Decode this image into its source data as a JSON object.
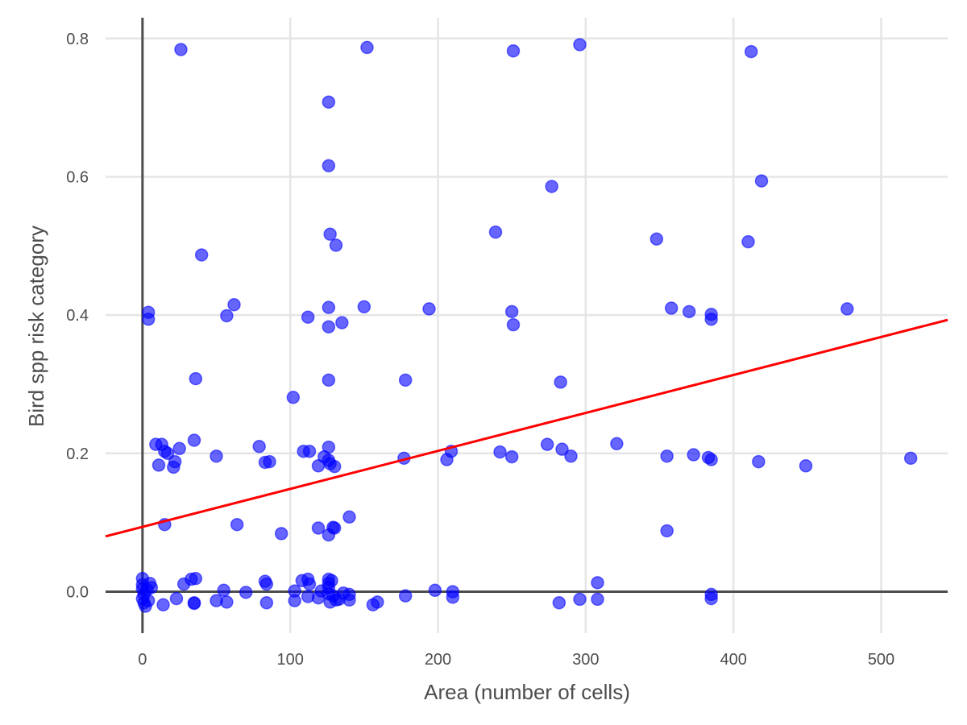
{
  "chart_data": {
    "type": "scatter",
    "title": "",
    "xlabel": "Area (number of cells)",
    "ylabel": "Bird spp risk category",
    "xlim": [
      -25,
      545
    ],
    "ylim": [
      -0.06,
      0.83
    ],
    "xticks": [
      0,
      100,
      200,
      300,
      400,
      500
    ],
    "yticks": [
      0.0,
      0.2,
      0.4,
      0.6,
      0.8
    ],
    "xtick_labels": [
      "0",
      "100",
      "200",
      "300",
      "400",
      "500"
    ],
    "ytick_labels": [
      "0.0",
      "0.2",
      "0.4",
      "0.6",
      "0.8"
    ],
    "grid": true,
    "reference_lines": {
      "x": 0,
      "y": 0
    },
    "point_color": "#0000ff",
    "fit_line_color": "#ff0000",
    "trend_line": {
      "x": [
        -25,
        545
      ],
      "y": [
        0.08,
        0.393
      ]
    },
    "points": [
      {
        "x": 26,
        "y": 0.784
      },
      {
        "x": 152,
        "y": 0.787
      },
      {
        "x": 251,
        "y": 0.782
      },
      {
        "x": 296,
        "y": 0.791
      },
      {
        "x": 412,
        "y": 0.781
      },
      {
        "x": 126,
        "y": 0.708
      },
      {
        "x": 126,
        "y": 0.616
      },
      {
        "x": 277,
        "y": 0.586
      },
      {
        "x": 419,
        "y": 0.594
      },
      {
        "x": 239,
        "y": 0.52
      },
      {
        "x": 127,
        "y": 0.517
      },
      {
        "x": 131,
        "y": 0.501
      },
      {
        "x": 40,
        "y": 0.487
      },
      {
        "x": 348,
        "y": 0.51
      },
      {
        "x": 410,
        "y": 0.506
      },
      {
        "x": 4,
        "y": 0.404
      },
      {
        "x": 4,
        "y": 0.394
      },
      {
        "x": 62,
        "y": 0.415
      },
      {
        "x": 57,
        "y": 0.399
      },
      {
        "x": 112,
        "y": 0.397
      },
      {
        "x": 126,
        "y": 0.411
      },
      {
        "x": 126,
        "y": 0.383
      },
      {
        "x": 135,
        "y": 0.389
      },
      {
        "x": 150,
        "y": 0.412
      },
      {
        "x": 194,
        "y": 0.409
      },
      {
        "x": 250,
        "y": 0.405
      },
      {
        "x": 251,
        "y": 0.386
      },
      {
        "x": 358,
        "y": 0.41
      },
      {
        "x": 370,
        "y": 0.405
      },
      {
        "x": 385,
        "y": 0.401
      },
      {
        "x": 385,
        "y": 0.394
      },
      {
        "x": 477,
        "y": 0.409
      },
      {
        "x": 36,
        "y": 0.308
      },
      {
        "x": 126,
        "y": 0.306
      },
      {
        "x": 178,
        "y": 0.306
      },
      {
        "x": 283,
        "y": 0.303
      },
      {
        "x": 102,
        "y": 0.281
      },
      {
        "x": 9,
        "y": 0.213
      },
      {
        "x": 13,
        "y": 0.213
      },
      {
        "x": 15,
        "y": 0.203
      },
      {
        "x": 17,
        "y": 0.2
      },
      {
        "x": 25,
        "y": 0.207
      },
      {
        "x": 35,
        "y": 0.219
      },
      {
        "x": 11,
        "y": 0.183
      },
      {
        "x": 21,
        "y": 0.18
      },
      {
        "x": 22,
        "y": 0.188
      },
      {
        "x": 50,
        "y": 0.196
      },
      {
        "x": 79,
        "y": 0.21
      },
      {
        "x": 83,
        "y": 0.187
      },
      {
        "x": 86,
        "y": 0.188
      },
      {
        "x": 109,
        "y": 0.203
      },
      {
        "x": 113,
        "y": 0.203
      },
      {
        "x": 119,
        "y": 0.182
      },
      {
        "x": 123,
        "y": 0.195
      },
      {
        "x": 126,
        "y": 0.209
      },
      {
        "x": 126,
        "y": 0.19
      },
      {
        "x": 127,
        "y": 0.185
      },
      {
        "x": 130,
        "y": 0.181
      },
      {
        "x": 177,
        "y": 0.193
      },
      {
        "x": 206,
        "y": 0.191
      },
      {
        "x": 209,
        "y": 0.203
      },
      {
        "x": 242,
        "y": 0.202
      },
      {
        "x": 250,
        "y": 0.195
      },
      {
        "x": 274,
        "y": 0.213
      },
      {
        "x": 284,
        "y": 0.206
      },
      {
        "x": 290,
        "y": 0.196
      },
      {
        "x": 321,
        "y": 0.214
      },
      {
        "x": 355,
        "y": 0.196
      },
      {
        "x": 373,
        "y": 0.198
      },
      {
        "x": 383,
        "y": 0.194
      },
      {
        "x": 385,
        "y": 0.191
      },
      {
        "x": 417,
        "y": 0.188
      },
      {
        "x": 449,
        "y": 0.182
      },
      {
        "x": 520,
        "y": 0.193
      },
      {
        "x": 15,
        "y": 0.097
      },
      {
        "x": 64,
        "y": 0.097
      },
      {
        "x": 94,
        "y": 0.084
      },
      {
        "x": 119,
        "y": 0.092
      },
      {
        "x": 126,
        "y": 0.082
      },
      {
        "x": 129,
        "y": 0.093
      },
      {
        "x": 130,
        "y": 0.092
      },
      {
        "x": 140,
        "y": 0.108
      },
      {
        "x": 355,
        "y": 0.088
      },
      {
        "x": 0,
        "y": 0.019
      },
      {
        "x": 0,
        "y": 0.01
      },
      {
        "x": 0,
        "y": 0.004
      },
      {
        "x": 1,
        "y": -0.004
      },
      {
        "x": 0,
        "y": -0.01
      },
      {
        "x": 1,
        "y": -0.016
      },
      {
        "x": 2,
        "y": -0.021
      },
      {
        "x": 3,
        "y": 0.003
      },
      {
        "x": 4,
        "y": -0.013
      },
      {
        "x": 5,
        "y": 0.012
      },
      {
        "x": 6,
        "y": 0.006
      },
      {
        "x": 14,
        "y": -0.019
      },
      {
        "x": 23,
        "y": -0.01
      },
      {
        "x": 28,
        "y": 0.011
      },
      {
        "x": 33,
        "y": 0.018
      },
      {
        "x": 36,
        "y": 0.019
      },
      {
        "x": 35,
        "y": -0.016
      },
      {
        "x": 35,
        "y": -0.017
      },
      {
        "x": 50,
        "y": -0.013
      },
      {
        "x": 55,
        "y": 0.002
      },
      {
        "x": 57,
        "y": -0.015
      },
      {
        "x": 70,
        "y": -0.001
      },
      {
        "x": 83,
        "y": 0.015
      },
      {
        "x": 84,
        "y": 0.011
      },
      {
        "x": 84,
        "y": -0.016
      },
      {
        "x": 103,
        "y": 0.001
      },
      {
        "x": 103,
        "y": -0.013
      },
      {
        "x": 108,
        "y": 0.016
      },
      {
        "x": 112,
        "y": 0.018
      },
      {
        "x": 113,
        "y": 0.011
      },
      {
        "x": 112,
        "y": -0.007
      },
      {
        "x": 119,
        "y": -0.009
      },
      {
        "x": 121,
        "y": 0.001
      },
      {
        "x": 126,
        "y": 0.018
      },
      {
        "x": 126,
        "y": 0.012
      },
      {
        "x": 126,
        "y": 0.006
      },
      {
        "x": 126,
        "y": -0.003
      },
      {
        "x": 127,
        "y": -0.015
      },
      {
        "x": 128,
        "y": 0.016
      },
      {
        "x": 129,
        "y": -0.006
      },
      {
        "x": 131,
        "y": -0.012
      },
      {
        "x": 133,
        "y": -0.011
      },
      {
        "x": 136,
        "y": -0.002
      },
      {
        "x": 140,
        "y": -0.004
      },
      {
        "x": 140,
        "y": -0.012
      },
      {
        "x": 156,
        "y": -0.019
      },
      {
        "x": 159,
        "y": -0.015
      },
      {
        "x": 178,
        "y": -0.006
      },
      {
        "x": 198,
        "y": 0.002
      },
      {
        "x": 210,
        "y": 0.0
      },
      {
        "x": 210,
        "y": -0.008
      },
      {
        "x": 282,
        "y": -0.016
      },
      {
        "x": 296,
        "y": -0.011
      },
      {
        "x": 308,
        "y": 0.013
      },
      {
        "x": 308,
        "y": -0.011
      },
      {
        "x": 385,
        "y": -0.004
      },
      {
        "x": 385,
        "y": -0.01
      }
    ]
  }
}
